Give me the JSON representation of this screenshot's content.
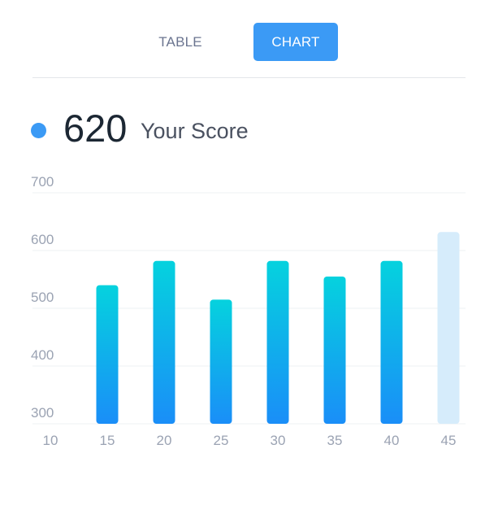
{
  "tabs": {
    "table_label": "TABLE",
    "chart_label": "CHART",
    "active": "CHART"
  },
  "score": {
    "value": "620",
    "label": "Your Score"
  },
  "colors": {
    "accent": "#3b9af5",
    "bar_top": "#05d2de",
    "bar_bottom": "#1a8ef8",
    "bar_highlight": "#d6ecfb"
  },
  "chart_data": {
    "type": "bar",
    "categories": [
      "15",
      "20",
      "25",
      "30",
      "35",
      "40",
      "45"
    ],
    "x_ticks": [
      "10",
      "15",
      "20",
      "25",
      "30",
      "35",
      "40",
      "45"
    ],
    "values": [
      540,
      582,
      515,
      582,
      555,
      582,
      632
    ],
    "highlight_index": 6,
    "y_ticks": [
      300,
      400,
      500,
      600,
      700
    ],
    "ylim": [
      300,
      720
    ],
    "title": "",
    "xlabel": "",
    "ylabel": "",
    "grid": true
  }
}
